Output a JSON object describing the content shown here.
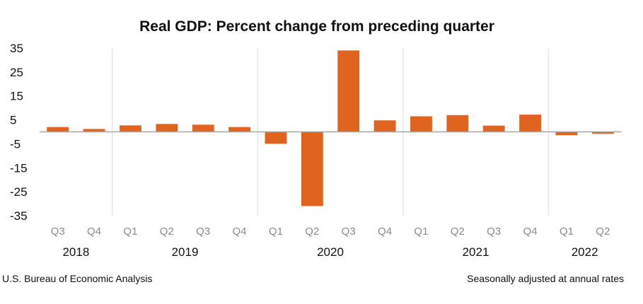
{
  "chart_data": {
    "type": "bar",
    "title": "Real GDP:  Percent change from preceding quarter",
    "xlabel": "",
    "ylabel": "",
    "ylim": [
      -35,
      35
    ],
    "yticks": [
      35,
      25,
      15,
      5,
      -5,
      -15,
      -25,
      -35
    ],
    "categories": [
      "Q3",
      "Q4",
      "Q1",
      "Q2",
      "Q3",
      "Q4",
      "Q1",
      "Q2",
      "Q3",
      "Q4",
      "Q1",
      "Q2",
      "Q3",
      "Q4",
      "Q1",
      "Q2"
    ],
    "years": [
      {
        "label": "2018",
        "count": 2
      },
      {
        "label": "2019",
        "count": 4
      },
      {
        "label": "2020",
        "count": 4
      },
      {
        "label": "2021",
        "count": 4
      },
      {
        "label": "2022",
        "count": 2
      }
    ],
    "values": [
      2.0,
      1.2,
      2.7,
      3.3,
      3.0,
      2.0,
      -5.0,
      -31.0,
      34.0,
      4.8,
      6.5,
      7.0,
      2.6,
      7.2,
      -1.4,
      -0.8
    ],
    "bar_color": "#e0641e",
    "grid": false
  },
  "footer": {
    "source": "U.S. Bureau of Economic Analysis",
    "note": "Seasonally adjusted at annual rates"
  }
}
